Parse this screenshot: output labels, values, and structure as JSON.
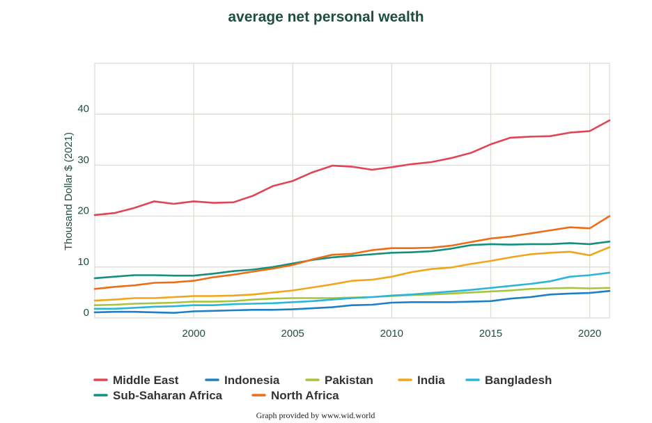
{
  "chart_data": {
    "type": "line",
    "title": "average net personal wealth",
    "xlabel": "",
    "ylabel": "Thousand Dollar $ (2021)",
    "xlim": [
      1995,
      2021
    ],
    "ylim": [
      0,
      50
    ],
    "xticks": [
      2000,
      2005,
      2010,
      2015,
      2020
    ],
    "yticks": [
      0,
      10,
      20,
      30,
      40
    ],
    "grid": true,
    "legend_position": "bottom",
    "x": [
      1995,
      1996,
      1997,
      1998,
      1999,
      2000,
      2001,
      2002,
      2003,
      2004,
      2005,
      2006,
      2007,
      2008,
      2009,
      2010,
      2011,
      2012,
      2013,
      2014,
      2015,
      2016,
      2017,
      2018,
      2019,
      2020,
      2021
    ],
    "series": [
      {
        "name": "Middle East",
        "color": "#e04457",
        "values": [
          20.2,
          20.6,
          21.6,
          22.9,
          22.4,
          22.9,
          22.6,
          22.7,
          24.0,
          25.9,
          26.9,
          28.6,
          29.9,
          29.7,
          29.1,
          29.6,
          30.2,
          30.6,
          31.4,
          32.4,
          34.1,
          35.4,
          35.6,
          35.7,
          36.4,
          36.7,
          38.8
        ]
      },
      {
        "name": "Indonesia",
        "color": "#1f7fc4",
        "values": [
          1.1,
          1.2,
          1.2,
          1.1,
          1.0,
          1.3,
          1.4,
          1.5,
          1.6,
          1.6,
          1.7,
          1.9,
          2.1,
          2.5,
          2.6,
          3.0,
          3.1,
          3.1,
          3.1,
          3.2,
          3.3,
          3.8,
          4.1,
          4.6,
          4.8,
          4.9,
          5.3
        ]
      },
      {
        "name": "Pakistan",
        "color": "#a8c43c",
        "values": [
          2.5,
          2.6,
          2.8,
          2.9,
          3.0,
          3.2,
          3.2,
          3.3,
          3.6,
          3.8,
          3.9,
          3.9,
          3.9,
          4.0,
          4.1,
          4.3,
          4.5,
          4.6,
          4.8,
          5.0,
          5.2,
          5.4,
          5.7,
          5.8,
          5.9,
          5.8,
          5.9
        ]
      },
      {
        "name": "India",
        "color": "#f0a619",
        "values": [
          3.4,
          3.6,
          3.9,
          3.9,
          4.1,
          4.3,
          4.3,
          4.4,
          4.6,
          5.0,
          5.4,
          6.0,
          6.6,
          7.3,
          7.5,
          8.1,
          9.0,
          9.6,
          9.9,
          10.6,
          11.2,
          11.9,
          12.5,
          12.8,
          13.0,
          12.3,
          13.9
        ]
      },
      {
        "name": "Bangladesh",
        "color": "#29b6d8",
        "values": [
          1.8,
          1.8,
          2.0,
          2.2,
          2.3,
          2.5,
          2.5,
          2.7,
          2.8,
          2.9,
          3.1,
          3.3,
          3.6,
          3.9,
          4.1,
          4.4,
          4.6,
          4.9,
          5.2,
          5.5,
          5.9,
          6.3,
          6.7,
          7.2,
          8.1,
          8.4,
          8.9
        ]
      },
      {
        "name": "Sub-Saharan Africa",
        "color": "#138f7e",
        "values": [
          7.8,
          8.1,
          8.4,
          8.4,
          8.3,
          8.3,
          8.7,
          9.2,
          9.5,
          10.0,
          10.7,
          11.4,
          11.9,
          12.2,
          12.5,
          12.8,
          12.9,
          13.1,
          13.6,
          14.3,
          14.5,
          14.4,
          14.5,
          14.5,
          14.7,
          14.5,
          15.0
        ]
      },
      {
        "name": "North Africa",
        "color": "#ec6d16",
        "values": [
          5.7,
          6.1,
          6.4,
          6.9,
          7.0,
          7.3,
          8.0,
          8.5,
          9.1,
          9.7,
          10.4,
          11.5,
          12.4,
          12.6,
          13.3,
          13.7,
          13.7,
          13.8,
          14.2,
          14.9,
          15.6,
          16.0,
          16.6,
          17.2,
          17.8,
          17.6,
          20.0
        ]
      }
    ],
    "credit": "Graph provided by www.wid.world"
  }
}
